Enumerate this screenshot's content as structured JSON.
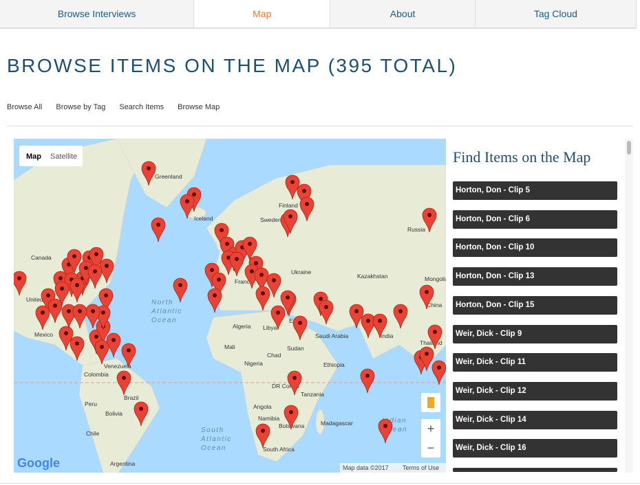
{
  "nav": {
    "tabs": [
      "Browse Interviews",
      "Map",
      "About",
      "Tag Cloud"
    ]
  },
  "title": "BROWSE ITEMS ON THE MAP (395 TOTAL)",
  "subnav": [
    "Browse All",
    "Browse by Tag",
    "Search Items",
    "Browse Map"
  ],
  "map": {
    "type_buttons": [
      "Map",
      "Satellite"
    ],
    "labels": [
      "Greenland",
      "Iceland",
      "Finland",
      "Sweden",
      "Russia",
      "Canada",
      "Kazakhstan",
      "Mongolia",
      "Ukraine",
      "France",
      "North",
      "Atlantic",
      "Ocean",
      "Algeria",
      "Libya",
      "Egypt",
      "Saudi Arabia",
      "India",
      "China",
      "Mexico",
      "Mali",
      "Chad",
      "Sudan",
      "Nigeria",
      "Ethiopia",
      "Thailand",
      "Venezuela",
      "Colombia",
      "DR Congo",
      "Tanzania",
      "Peru",
      "Brazil",
      "Bolivia",
      "Angola",
      "Namibia",
      "Botswana",
      "Madagascar",
      "Indian",
      "Ocean",
      "South",
      "Atlantic",
      "Ocean",
      "Chile",
      "South Africa",
      "Argentina",
      "United"
    ],
    "zoom_in": "+",
    "zoom_out": "−",
    "logo": "Google",
    "attribution": "Map data ©2017",
    "terms": "Terms of Use"
  },
  "sidebar": {
    "heading": "Find Items on the Map",
    "items": [
      "Horton, Don - Clip 5",
      "Horton, Don - Clip 6",
      "Horton, Don - Clip 10",
      "Horton, Don - Clip 13",
      "Horton, Don - Clip 15",
      "Weir, Dick - Clip 9",
      "Weir, Dick - Clip 11",
      "Weir, Dick - Clip 12",
      "Weir, Dick - Clip 14",
      "Weir, Dick - Clip 16"
    ]
  }
}
